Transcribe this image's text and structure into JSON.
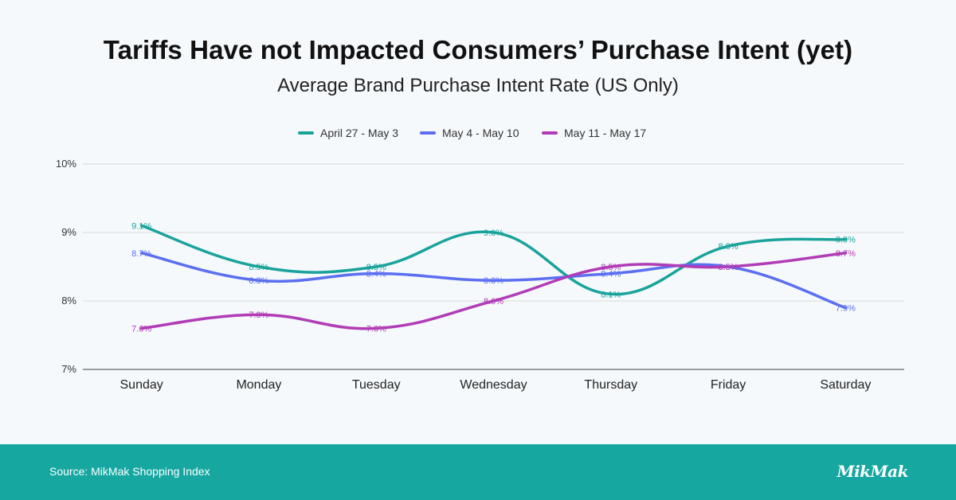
{
  "title": "Tariffs Have not Impacted Consumers’ Purchase Intent (yet)",
  "subtitle": "Average Brand Purchase Intent Rate (US Only)",
  "footer": {
    "source": "Source: MikMak Shopping Index",
    "logo": "MikMak"
  },
  "colors": {
    "series": [
      "#1aa39b",
      "#5b6ff0",
      "#b13cb6"
    ],
    "footer_bg": "#16a7a0",
    "grid": "#d9d9d9"
  },
  "chart_data": {
    "type": "line",
    "title": "Tariffs Have not Impacted Consumers’ Purchase Intent (yet)",
    "subtitle": "Average Brand Purchase Intent Rate (US Only)",
    "categories": [
      "Sunday",
      "Monday",
      "Tuesday",
      "Wednesday",
      "Thursday",
      "Friday",
      "Saturday"
    ],
    "ylim": [
      7,
      10
    ],
    "yticks": [
      7,
      8,
      9,
      10
    ],
    "ytick_labels": [
      "7%",
      "8%",
      "9%",
      "10%"
    ],
    "legend_position": "top-center",
    "grid": true,
    "smooth": true,
    "series": [
      {
        "name": "April 27 - May 3",
        "values": [
          9.1,
          8.5,
          8.5,
          9.0,
          8.1,
          8.8,
          8.9
        ],
        "labels": [
          "9.1%",
          "8.5%",
          "8.5%",
          "9.0%",
          "8.1%",
          "8.8%",
          "8.9%"
        ]
      },
      {
        "name": "May 4 - May 10",
        "values": [
          8.7,
          8.3,
          8.4,
          8.3,
          8.4,
          8.5,
          7.9
        ],
        "labels": [
          "8.7%",
          "8.3%",
          "8.4%",
          "8.3%",
          "8.4%",
          "8.5%",
          "7.9%"
        ]
      },
      {
        "name": "May 11 - May 17",
        "values": [
          7.6,
          7.8,
          7.6,
          8.0,
          8.5,
          8.5,
          8.7
        ],
        "labels": [
          "7.6%",
          "7.8%",
          "7.6%",
          "8.0%",
          "8.5%",
          "8.5%",
          "8.7%"
        ]
      }
    ]
  }
}
